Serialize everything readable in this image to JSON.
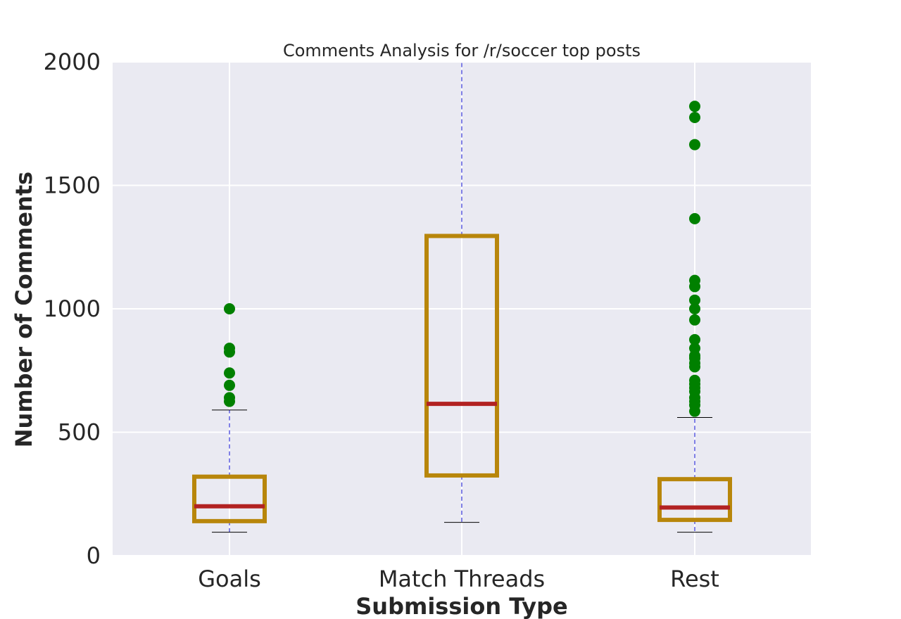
{
  "chart_data": {
    "type": "box",
    "title": "Comments Analysis for /r/soccer top posts",
    "xlabel": "Submission Type",
    "ylabel": "Number of Comments",
    "ylim": [
      0,
      2000
    ],
    "yticks": [
      0,
      500,
      1000,
      1500,
      2000
    ],
    "grid": true,
    "categories": [
      "Goals",
      "Match Threads",
      "Rest"
    ],
    "boxes": [
      {
        "category": "Goals",
        "whisker_low": 95,
        "q1": 140,
        "median": 200,
        "q3": 320,
        "whisker_high": 590,
        "outliers": [
          625,
          640,
          690,
          740,
          825,
          840,
          1000
        ]
      },
      {
        "category": "Match Threads",
        "whisker_low": 135,
        "q1": 325,
        "median": 615,
        "q3": 1295,
        "whisker_high": 2000,
        "outliers": []
      },
      {
        "category": "Rest",
        "whisker_low": 95,
        "q1": 145,
        "median": 195,
        "q3": 310,
        "whisker_high": 560,
        "outliers": [
          585,
          610,
          625,
          640,
          665,
          680,
          695,
          710,
          765,
          780,
          800,
          810,
          840,
          875,
          955,
          1000,
          1035,
          1090,
          1115,
          1365,
          1665,
          1775,
          1820
        ]
      }
    ],
    "colors": {
      "box": "#b8860b",
      "median": "#b22222",
      "whisker": "#0000cc",
      "cap": "#000000",
      "outlier": "#008000",
      "plot_bg": "#eaeaf2",
      "grid": "#ffffff"
    }
  }
}
